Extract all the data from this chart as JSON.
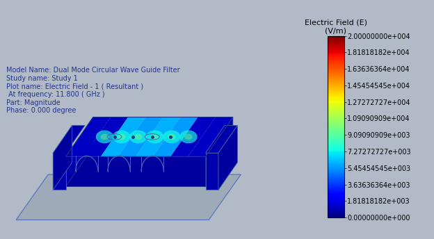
{
  "background_color": "#b2bac8",
  "colorbar_title_line1": "Electric Field (E)",
  "colorbar_title_line2": "(V/m)",
  "colorbar_values": [
    "2.00000000e+004",
    "1.81818182e+004",
    "1.63636364e+004",
    "1.45454545e+004",
    "1.27272727e+004",
    "1.09090909e+004",
    "9.09090909e+003",
    "7.27272727e+003",
    "5.45454545e+003",
    "3.63636364e+003",
    "1.81818182e+003",
    "0.00000000e+000"
  ],
  "colorbar_vmin": 0,
  "colorbar_vmax": 20000,
  "annotation_lines": [
    "Model Name: Dual Mode Circular Wave Guide Filter",
    "Study name: Study 1",
    "Plot name: Electric Field - 1 ( Resultant )",
    " At frequency: 11.800 ( GHz )",
    "Part: Magnitude",
    "Phase: 0.000 degree"
  ],
  "annotation_fontsize": 7.0,
  "annotation_color": "#223388",
  "colorbar_label_fontsize": 7.0,
  "colorbar_title_fontsize": 8.0,
  "colormap": "jet",
  "plane_color": "#9eaab8",
  "plane_edge_color": "#5577bb",
  "outline_col": "#223388",
  "outline_col2": "#4466aa"
}
